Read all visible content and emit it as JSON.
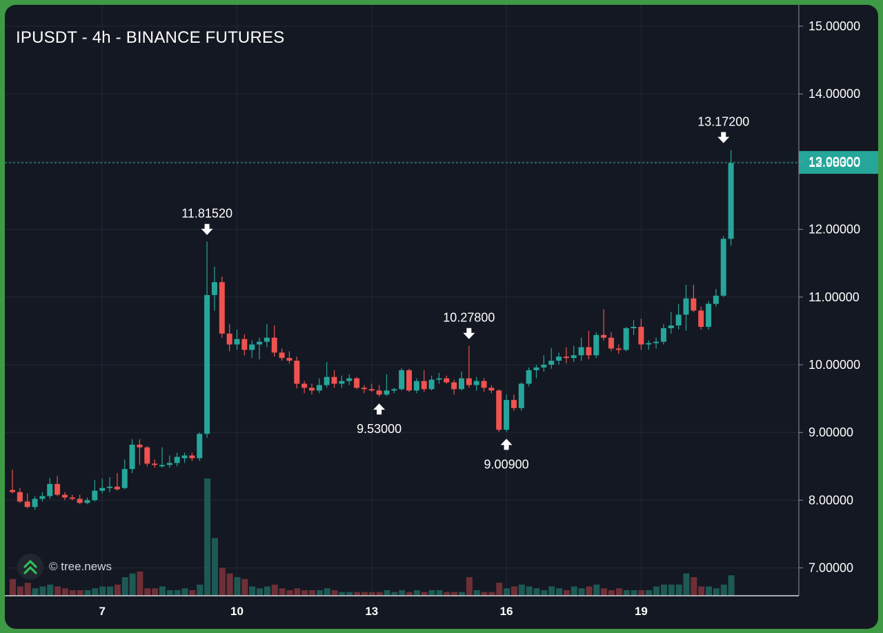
{
  "colors": {
    "background": "#141822",
    "grid": "#232835",
    "up": "#26a69a",
    "down": "#ef5350",
    "up_volume": "#1d5a55",
    "down_volume": "#6e2f37",
    "last_price": "#26a69a",
    "text": "#ffffff"
  },
  "chart_data": {
    "type": "candlestick",
    "title": "IPUSDT - 4h - BINANCE FUTURES",
    "watermark": "© tree.news",
    "y_ticks": [
      "15.00000",
      "14.00000",
      "13.00000",
      "12.00000",
      "11.00000",
      "10.00000",
      "9.00000",
      "8.00000",
      "7.00000"
    ],
    "y_tick_values": [
      15,
      14,
      13,
      12,
      11,
      10,
      9,
      8,
      7
    ],
    "x_ticks": [
      "7",
      "10",
      "13",
      "16",
      "19"
    ],
    "x_tick_candle_index": [
      12,
      30,
      48,
      66,
      84
    ],
    "last_price": "12.98300",
    "last_price_value": 12.983,
    "annotations": [
      {
        "label": "11.81520",
        "value": 11.8152,
        "index": 26,
        "dir": "high"
      },
      {
        "label": "9.53000",
        "value": 9.53,
        "index": 49,
        "dir": "low"
      },
      {
        "label": "10.27800",
        "value": 10.278,
        "index": 61,
        "dir": "high"
      },
      {
        "label": "9.00900",
        "value": 9.009,
        "index": 66,
        "dir": "low"
      },
      {
        "label": "13.17200",
        "value": 13.172,
        "index": 95,
        "dir": "high"
      }
    ],
    "candles": [
      [
        8.15,
        8.45,
        8.1,
        8.12
      ],
      [
        8.12,
        8.18,
        7.96,
        7.98
      ],
      [
        7.98,
        8.1,
        7.88,
        7.9
      ],
      [
        7.9,
        8.06,
        7.86,
        8.02
      ],
      [
        8.02,
        8.12,
        7.98,
        8.06
      ],
      [
        8.06,
        8.33,
        8.02,
        8.24
      ],
      [
        8.24,
        8.36,
        8.06,
        8.08
      ],
      [
        8.08,
        8.12,
        8.0,
        8.04
      ],
      [
        8.04,
        8.08,
        8.0,
        8.02
      ],
      [
        8.02,
        8.08,
        7.94,
        7.96
      ],
      [
        7.96,
        8.04,
        7.94,
        8.0
      ],
      [
        8.0,
        8.3,
        7.98,
        8.14
      ],
      [
        8.14,
        8.32,
        8.1,
        8.18
      ],
      [
        8.18,
        8.34,
        8.12,
        8.2
      ],
      [
        8.2,
        8.4,
        8.14,
        8.16
      ],
      [
        8.18,
        8.6,
        8.16,
        8.46
      ],
      [
        8.46,
        8.9,
        8.4,
        8.82
      ],
      [
        8.82,
        8.9,
        8.52,
        8.78
      ],
      [
        8.78,
        8.8,
        8.5,
        8.54
      ],
      [
        8.54,
        8.6,
        8.48,
        8.52
      ],
      [
        8.5,
        8.78,
        8.48,
        8.52
      ],
      [
        8.52,
        8.66,
        8.48,
        8.55
      ],
      [
        8.55,
        8.7,
        8.5,
        8.64
      ],
      [
        8.62,
        8.7,
        8.55,
        8.66
      ],
      [
        8.66,
        8.7,
        8.58,
        8.62
      ],
      [
        8.62,
        9.0,
        8.58,
        8.98
      ],
      [
        8.98,
        11.82,
        8.92,
        11.03
      ],
      [
        11.03,
        11.45,
        10.8,
        11.22
      ],
      [
        11.22,
        11.3,
        10.4,
        10.46
      ],
      [
        10.46,
        10.6,
        10.2,
        10.3
      ],
      [
        10.3,
        10.52,
        10.22,
        10.38
      ],
      [
        10.38,
        10.45,
        10.14,
        10.22
      ],
      [
        10.22,
        10.36,
        10.1,
        10.3
      ],
      [
        10.3,
        10.4,
        10.08,
        10.34
      ],
      [
        10.34,
        10.6,
        10.26,
        10.4
      ],
      [
        10.4,
        10.58,
        10.12,
        10.18
      ],
      [
        10.18,
        10.24,
        10.06,
        10.1
      ],
      [
        10.1,
        10.2,
        10.02,
        10.06
      ],
      [
        10.06,
        10.12,
        9.65,
        9.72
      ],
      [
        9.72,
        9.76,
        9.58,
        9.66
      ],
      [
        9.66,
        9.72,
        9.56,
        9.62
      ],
      [
        9.62,
        9.8,
        9.58,
        9.7
      ],
      [
        9.7,
        10.04,
        9.66,
        9.82
      ],
      [
        9.82,
        9.92,
        9.66,
        9.72
      ],
      [
        9.72,
        9.84,
        9.66,
        9.76
      ],
      [
        9.76,
        9.86,
        9.7,
        9.8
      ],
      [
        9.8,
        9.82,
        9.64,
        9.66
      ],
      [
        9.66,
        9.7,
        9.58,
        9.64
      ],
      [
        9.64,
        9.72,
        9.6,
        9.62
      ],
      [
        9.62,
        9.7,
        9.53,
        9.56
      ],
      [
        9.56,
        9.86,
        9.54,
        9.62
      ],
      [
        9.62,
        9.66,
        9.58,
        9.64
      ],
      [
        9.64,
        9.95,
        9.62,
        9.92
      ],
      [
        9.92,
        9.94,
        9.6,
        9.62
      ],
      [
        9.62,
        9.8,
        9.58,
        9.76
      ],
      [
        9.76,
        9.92,
        9.6,
        9.64
      ],
      [
        9.64,
        9.84,
        9.62,
        9.78
      ],
      [
        9.78,
        9.88,
        9.72,
        9.8
      ],
      [
        9.8,
        9.84,
        9.72,
        9.74
      ],
      [
        9.74,
        9.78,
        9.56,
        9.64
      ],
      [
        9.64,
        9.9,
        9.62,
        9.8
      ],
      [
        9.8,
        10.28,
        9.66,
        9.7
      ],
      [
        9.7,
        9.82,
        9.62,
        9.76
      ],
      [
        9.76,
        9.8,
        9.6,
        9.66
      ],
      [
        9.66,
        9.7,
        9.58,
        9.62
      ],
      [
        9.62,
        9.64,
        9.01,
        9.04
      ],
      [
        9.04,
        9.56,
        9.01,
        9.48
      ],
      [
        9.48,
        9.56,
        9.32,
        9.36
      ],
      [
        9.36,
        9.74,
        9.32,
        9.72
      ],
      [
        9.72,
        9.96,
        9.68,
        9.92
      ],
      [
        9.92,
        10.0,
        9.8,
        9.96
      ],
      [
        9.96,
        10.14,
        9.9,
        10.0
      ],
      [
        10.0,
        10.25,
        9.94,
        10.06
      ],
      [
        10.06,
        10.18,
        10.0,
        10.12
      ],
      [
        10.12,
        10.26,
        10.02,
        10.1
      ],
      [
        10.1,
        10.28,
        10.04,
        10.14
      ],
      [
        10.14,
        10.4,
        10.06,
        10.26
      ],
      [
        10.26,
        10.5,
        10.08,
        10.14
      ],
      [
        10.14,
        10.48,
        10.1,
        10.44
      ],
      [
        10.44,
        10.82,
        10.36,
        10.4
      ],
      [
        10.4,
        10.48,
        10.2,
        10.24
      ],
      [
        10.24,
        10.3,
        10.16,
        10.22
      ],
      [
        10.22,
        10.56,
        10.2,
        10.54
      ],
      [
        10.54,
        10.66,
        10.44,
        10.56
      ],
      [
        10.56,
        10.68,
        10.22,
        10.3
      ],
      [
        10.3,
        10.36,
        10.22,
        10.32
      ],
      [
        10.32,
        10.4,
        10.24,
        10.34
      ],
      [
        10.34,
        10.6,
        10.3,
        10.54
      ],
      [
        10.54,
        10.78,
        10.46,
        10.58
      ],
      [
        10.58,
        10.9,
        10.52,
        10.74
      ],
      [
        10.74,
        11.18,
        10.5,
        10.98
      ],
      [
        10.98,
        11.18,
        10.78,
        10.8
      ],
      [
        10.8,
        10.86,
        10.52,
        10.56
      ],
      [
        10.56,
        10.94,
        10.52,
        10.9
      ],
      [
        10.9,
        11.12,
        10.86,
        11.02
      ],
      [
        11.02,
        11.9,
        11.0,
        11.86
      ],
      [
        11.86,
        13.17,
        11.76,
        12.98
      ]
    ],
    "volumes": [
      0.9,
      0.5,
      0.7,
      0.4,
      0.5,
      0.6,
      0.5,
      0.4,
      0.3,
      0.3,
      0.3,
      0.4,
      0.5,
      0.5,
      0.6,
      1.0,
      1.2,
      1.3,
      0.4,
      0.4,
      0.5,
      0.3,
      0.3,
      0.4,
      0.3,
      0.6,
      6.3,
      3.1,
      1.5,
      1.2,
      1.0,
      0.9,
      0.5,
      0.4,
      0.5,
      0.6,
      0.4,
      0.3,
      0.4,
      0.3,
      0.3,
      0.3,
      0.4,
      0.3,
      0.2,
      0.2,
      0.2,
      0.2,
      0.2,
      0.2,
      0.3,
      0.2,
      0.3,
      0.2,
      0.3,
      0.2,
      0.3,
      0.3,
      0.2,
      0.2,
      0.2,
      1.0,
      0.3,
      0.2,
      0.2,
      0.7,
      0.4,
      0.5,
      0.6,
      0.5,
      0.4,
      0.3,
      0.5,
      0.4,
      0.3,
      0.5,
      0.4,
      0.5,
      0.6,
      0.4,
      0.3,
      0.4,
      0.3,
      0.3,
      0.3,
      0.3,
      0.5,
      0.6,
      0.6,
      0.6,
      1.2,
      1.0,
      0.5,
      0.5,
      0.4,
      0.6,
      1.1
    ]
  }
}
